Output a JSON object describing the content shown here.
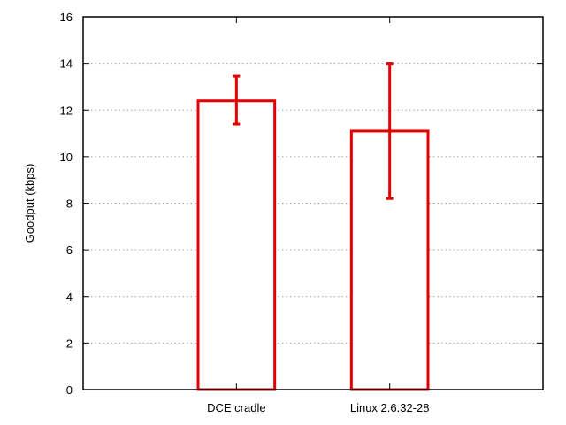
{
  "chart_data": {
    "type": "bar",
    "title": "",
    "xlabel": "",
    "ylabel": "Goodput (kbps)",
    "ylim": [
      0,
      16
    ],
    "yticks": [
      0,
      2,
      4,
      6,
      8,
      10,
      12,
      14,
      16
    ],
    "grid": "horizontal dotted",
    "categories": [
      "DCE cradle",
      "Linux 2.6.32-28"
    ],
    "series": [
      {
        "values": [
          12.4,
          11.1
        ],
        "error_low": [
          11.4,
          8.2
        ],
        "error_high": [
          13.45,
          14.0
        ],
        "color": "#e00000"
      }
    ]
  }
}
